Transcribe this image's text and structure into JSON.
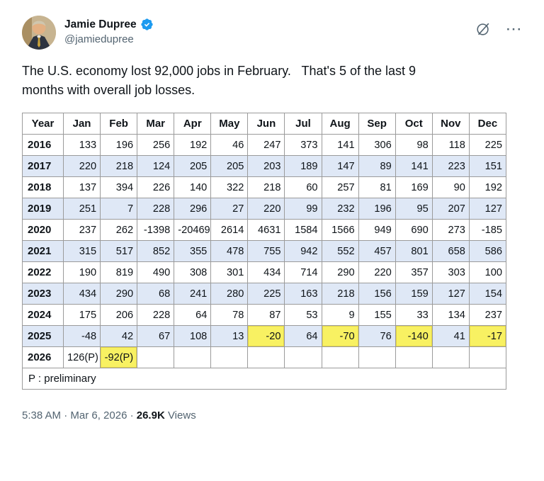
{
  "tweet": {
    "author": {
      "name": "Jamie Dupree",
      "handle": "@jamiedupree"
    },
    "body_lines": [
      "The U.S. economy lost 92,000 jobs in February.   That's 5 of the last 9",
      "months with overall job losses."
    ],
    "timestamp": "5:38 AM · Mar 6, 2026 ·",
    "views_count": "26.9K",
    "views_label": "Views"
  },
  "icons": {
    "grok": "Ø",
    "more": "···",
    "verified": "check"
  },
  "table": {
    "headers": [
      "Year",
      "Jan",
      "Feb",
      "Mar",
      "Apr",
      "May",
      "Jun",
      "Jul",
      "Aug",
      "Sep",
      "Oct",
      "Nov",
      "Dec"
    ],
    "rows": [
      {
        "year": "2016",
        "values": [
          "133",
          "196",
          "256",
          "192",
          "46",
          "247",
          "373",
          "141",
          "306",
          "98",
          "118",
          "225"
        ]
      },
      {
        "year": "2017",
        "values": [
          "220",
          "218",
          "124",
          "205",
          "205",
          "203",
          "189",
          "147",
          "89",
          "141",
          "223",
          "151"
        ]
      },
      {
        "year": "2018",
        "values": [
          "137",
          "394",
          "226",
          "140",
          "322",
          "218",
          "60",
          "257",
          "81",
          "169",
          "90",
          "192"
        ]
      },
      {
        "year": "2019",
        "values": [
          "251",
          "7",
          "228",
          "296",
          "27",
          "220",
          "99",
          "232",
          "196",
          "95",
          "207",
          "127"
        ]
      },
      {
        "year": "2020",
        "values": [
          "237",
          "262",
          "-1398",
          "-20469",
          "2614",
          "4631",
          "1584",
          "1566",
          "949",
          "690",
          "273",
          "-185"
        ]
      },
      {
        "year": "2021",
        "values": [
          "315",
          "517",
          "852",
          "355",
          "478",
          "755",
          "942",
          "552",
          "457",
          "801",
          "658",
          "586"
        ]
      },
      {
        "year": "2022",
        "values": [
          "190",
          "819",
          "490",
          "308",
          "301",
          "434",
          "714",
          "290",
          "220",
          "357",
          "303",
          "100"
        ]
      },
      {
        "year": "2023",
        "values": [
          "434",
          "290",
          "68",
          "241",
          "280",
          "225",
          "163",
          "218",
          "156",
          "159",
          "127",
          "154"
        ]
      },
      {
        "year": "2024",
        "values": [
          "175",
          "206",
          "228",
          "64",
          "78",
          "87",
          "53",
          "9",
          "155",
          "33",
          "134",
          "237"
        ]
      },
      {
        "year": "2025",
        "values": [
          "-48",
          "42",
          "67",
          "108",
          "13",
          "-20",
          "64",
          "-70",
          "76",
          "-140",
          "41",
          "-17"
        ],
        "highlight": [
          5,
          7,
          9,
          11
        ]
      },
      {
        "year": "2026",
        "values": [
          "126(P)",
          "-92(P)",
          "",
          "",
          "",
          "",
          "",
          "",
          "",
          "",
          "",
          ""
        ],
        "highlight": [
          1
        ]
      }
    ],
    "footnote": "P : preliminary"
  },
  "colors": {
    "accent_blue": "#1d9bf0",
    "highlight_yellow": "#f8f162",
    "alt_row_blue": "#dfe8f6",
    "muted_gray": "#536471"
  }
}
